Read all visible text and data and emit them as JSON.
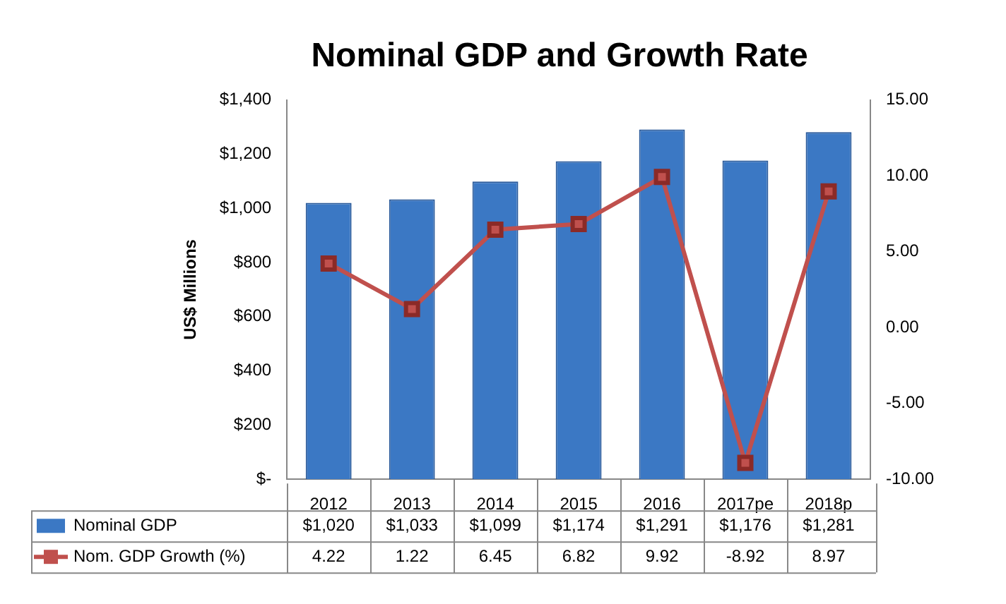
{
  "chart_data": {
    "type": "bar",
    "title": "Nominal GDP and Growth Rate",
    "ylabel": "US$ Millions",
    "categories": [
      "2012",
      "2013",
      "2014",
      "2015",
      "2016",
      "2017pe",
      "2018p"
    ],
    "series": [
      {
        "name": "Nominal GDP",
        "color": "#3b78c4",
        "values": [
          1020,
          1033,
          1099,
          1174,
          1291,
          1176,
          1281
        ],
        "value_labels": [
          "$1,020",
          "$1,033",
          "$1,099",
          "$1,174",
          "$1,291",
          "$1,176",
          "$1,281"
        ]
      },
      {
        "name": "Nom. GDP Growth (%)",
        "type": "line",
        "axis": "y2",
        "color": "#c0504d",
        "marker": "square",
        "values": [
          4.22,
          1.22,
          6.45,
          6.82,
          9.92,
          -8.92,
          8.97
        ],
        "value_labels": [
          "4.22",
          "1.22",
          "6.45",
          "6.82",
          "9.92",
          "-8.92",
          "8.97"
        ]
      }
    ],
    "ylim": [
      0,
      1400
    ],
    "yticks": [
      {
        "value": 0,
        "label": "$-"
      },
      {
        "value": 200,
        "label": "$200"
      },
      {
        "value": 400,
        "label": "$400"
      },
      {
        "value": 600,
        "label": "$600"
      },
      {
        "value": 800,
        "label": "$800"
      },
      {
        "value": 1000,
        "label": "$1,000"
      },
      {
        "value": 1200,
        "label": "$1,200"
      },
      {
        "value": 1400,
        "label": "$1,400"
      }
    ],
    "y2lim": [
      -10,
      15
    ],
    "y2ticks": [
      {
        "value": -10,
        "label": "-10.00"
      },
      {
        "value": -5,
        "label": "-5.00"
      },
      {
        "value": 0,
        "label": "0.00"
      },
      {
        "value": 5,
        "label": "5.00"
      },
      {
        "value": 10,
        "label": "10.00"
      },
      {
        "value": 15,
        "label": "15.00"
      }
    ],
    "grid": false,
    "legend": "bottom"
  }
}
